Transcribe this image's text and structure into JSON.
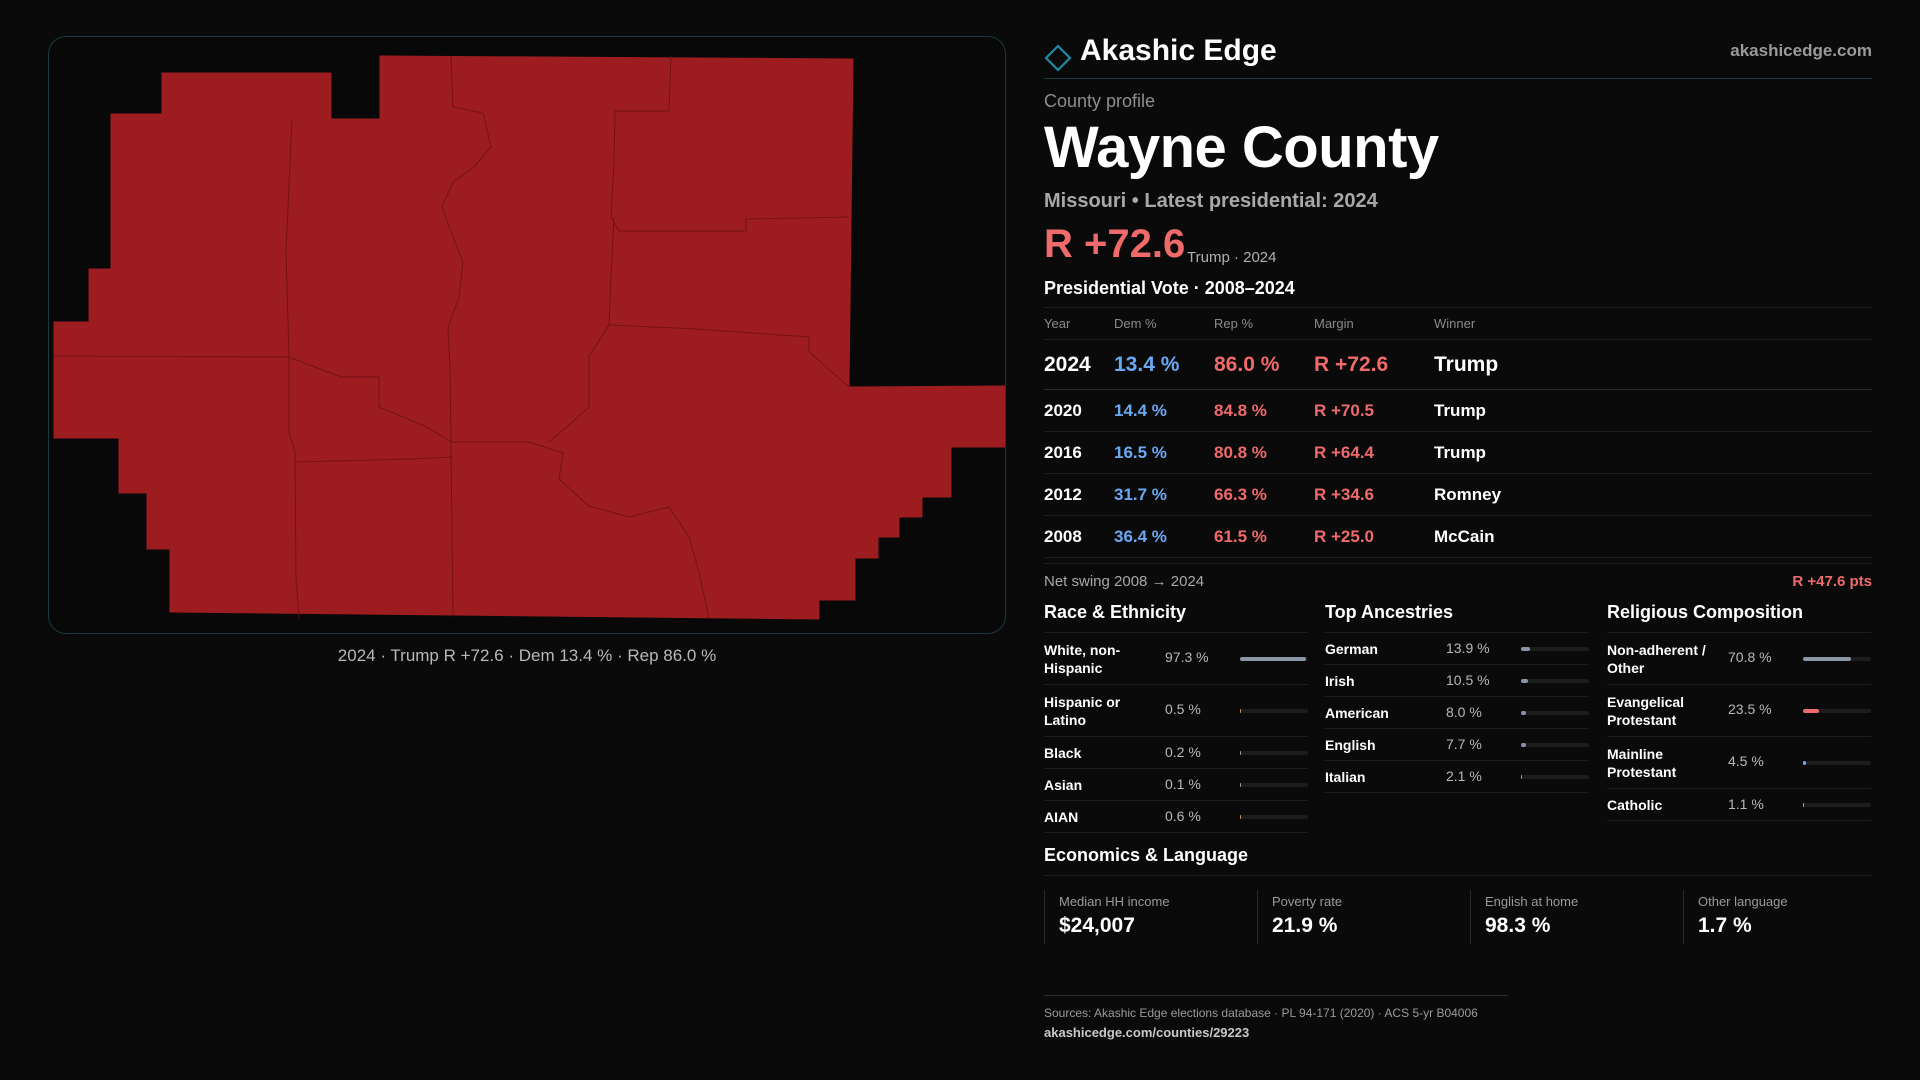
{
  "colors": {
    "republican": "#ef6a6a",
    "democrat": "#6aa9f2",
    "map_fill": "#9c1c20",
    "accent": "#1e8aa0"
  },
  "brand": {
    "name": "Akashic Edge",
    "url": "akashicedge.com",
    "logo_icon": "diamond-outline-icon"
  },
  "profile": {
    "kicker": "County profile",
    "county": "Wayne County",
    "subtitle": "Missouri • Latest presidential: 2024",
    "headline_margin": "R +72.6",
    "headline_note": "Trump · 2024"
  },
  "map": {
    "caption": "2024 · Trump R +72.6 · Dem 13.4 % · Rep 86.0 %"
  },
  "votes": {
    "title": "Presidential Vote · 2008–2024",
    "headers": {
      "year": "Year",
      "dem": "Dem %",
      "rep": "Rep %",
      "margin": "Margin",
      "winner": "Winner"
    },
    "rows": [
      {
        "year": "2024",
        "dem": "13.4 %",
        "rep": "86.0 %",
        "margin": "R +72.6",
        "winner": "Trump"
      },
      {
        "year": "2020",
        "dem": "14.4 %",
        "rep": "84.8 %",
        "margin": "R +70.5",
        "winner": "Trump"
      },
      {
        "year": "2016",
        "dem": "16.5 %",
        "rep": "80.8 %",
        "margin": "R +64.4",
        "winner": "Trump"
      },
      {
        "year": "2012",
        "dem": "31.7 %",
        "rep": "66.3 %",
        "margin": "R +34.6",
        "winner": "Romney"
      },
      {
        "year": "2008",
        "dem": "36.4 %",
        "rep": "61.5 %",
        "margin": "R +25.0",
        "winner": "McCain"
      }
    ],
    "swing_label": "Net swing 2008 → 2024",
    "swing_value": "R +47.6 pts"
  },
  "race": {
    "title": "Race & Ethnicity",
    "items": [
      {
        "label": "White, non-Hispanic",
        "value": "97.3 %",
        "share": 0.973,
        "color": "#8a96a8"
      },
      {
        "label": "Hispanic or Latino",
        "value": "0.5 %",
        "share": 0.005,
        "color": "#c98a3a"
      },
      {
        "label": "Black",
        "value": "0.2 %",
        "share": 0.002,
        "color": "#8a96a8"
      },
      {
        "label": "Asian",
        "value": "0.1 %",
        "share": 0.001,
        "color": "#8a96a8"
      },
      {
        "label": "AIAN",
        "value": "0.6 %",
        "share": 0.006,
        "color": "#c98a3a"
      }
    ]
  },
  "ancestry": {
    "title": "Top Ancestries",
    "items": [
      {
        "label": "German",
        "value": "13.9 %",
        "share": 0.139,
        "color": "#8a96a8"
      },
      {
        "label": "Irish",
        "value": "10.5 %",
        "share": 0.105,
        "color": "#8a96a8"
      },
      {
        "label": "American",
        "value": "8.0 %",
        "share": 0.08,
        "color": "#8a96a8"
      },
      {
        "label": "English",
        "value": "7.7 %",
        "share": 0.077,
        "color": "#8a96a8"
      },
      {
        "label": "Italian",
        "value": "2.1 %",
        "share": 0.021,
        "color": "#8a96a8"
      }
    ]
  },
  "religion": {
    "title": "Religious Composition",
    "items": [
      {
        "label": "Non-adherent / Other",
        "value": "70.8 %",
        "share": 0.708,
        "color": "#8a96a8"
      },
      {
        "label": "Evangelical Protestant",
        "value": "23.5 %",
        "share": 0.235,
        "color": "#ef6a6a"
      },
      {
        "label": "Mainline Protestant",
        "value": "4.5 %",
        "share": 0.045,
        "color": "#6aa9f2"
      },
      {
        "label": "Catholic",
        "value": "1.1 %",
        "share": 0.011,
        "color": "#c9a23a"
      }
    ]
  },
  "economics": {
    "title": "Economics & Language",
    "items": [
      {
        "label": "Median HH income",
        "value": "$24,007"
      },
      {
        "label": "Poverty rate",
        "value": "21.9 %"
      },
      {
        "label": "English at home",
        "value": "98.3 %"
      },
      {
        "label": "Other language",
        "value": "1.7 %"
      }
    ]
  },
  "sources": {
    "text": "Sources: Akashic Edge elections database · PL 94-171 (2020) · ACS 5-yr B04006",
    "url": "akashicedge.com/counties/29223"
  }
}
